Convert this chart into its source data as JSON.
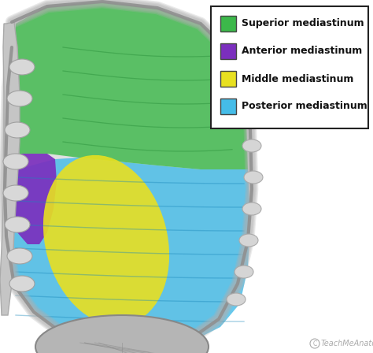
{
  "legend_entries": [
    {
      "label": "Superior mediastinum",
      "color": "#3cb84a"
    },
    {
      "label": "Anterior mediastinum",
      "color": "#7b2fbe"
    },
    {
      "label": "Middle mediastinum",
      "color": "#e8e020"
    },
    {
      "label": "Posterior mediastinum",
      "color": "#45bce8"
    }
  ],
  "legend_box_color": "#ffffff",
  "legend_box_edge": "#222222",
  "bg_color": "#ffffff",
  "watermark_color": "#aaaaaa",
  "fig_width": 4.74,
  "fig_height": 4.48,
  "dpi": 100,
  "superior_color": "#3cb84a",
  "anterior_color": "#7b2fbe",
  "middle_color": "#e8e020",
  "posterior_color": "#45bce8",
  "legend_fontsize": 9,
  "chest_wall_color": "#c8c8c8",
  "chest_edge_color": "#999999",
  "rib_face_color": "#d5d5d5",
  "rib_edge_color": "#aaaaaa",
  "diaphragm_color": "#b8b8b8"
}
